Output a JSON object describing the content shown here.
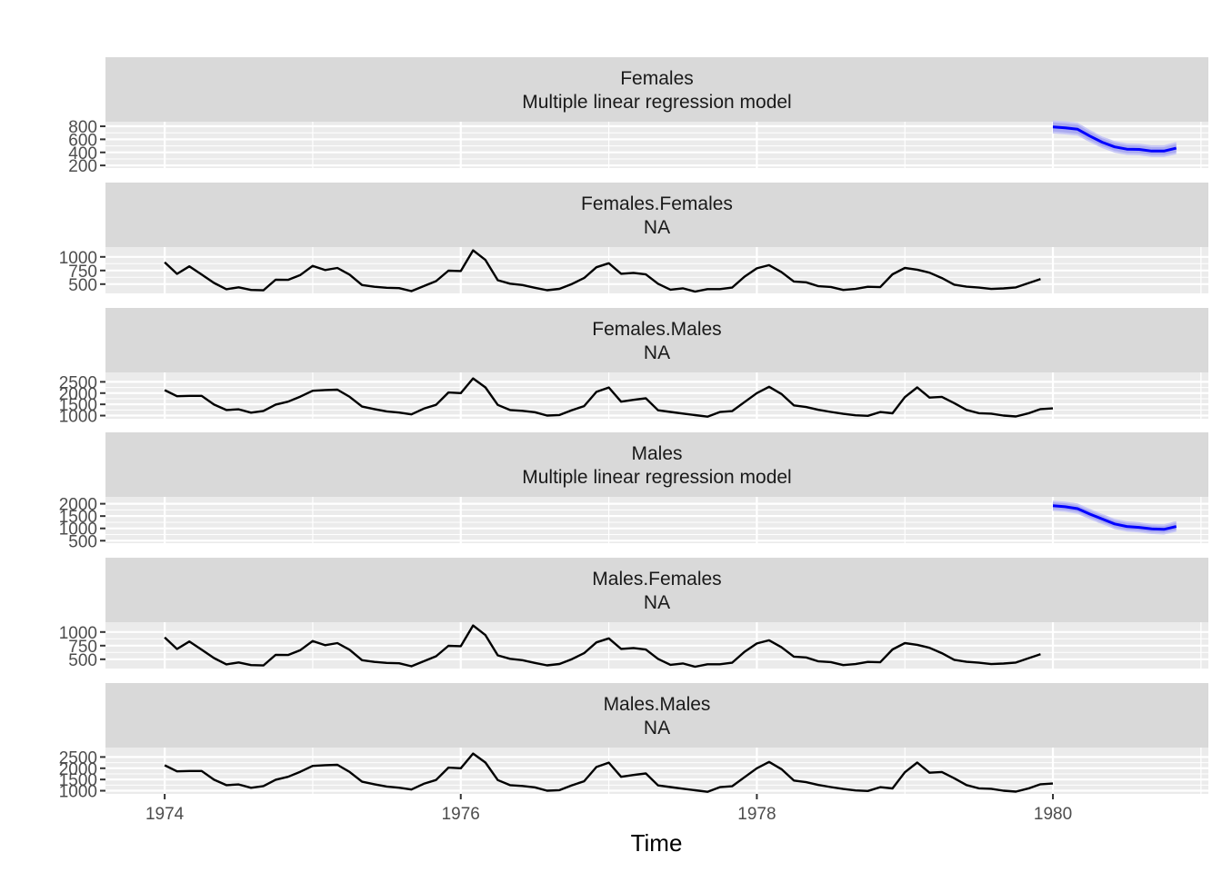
{
  "colors": {
    "strip_bg": "#d9d9d9",
    "panel_bg": "#ebebeb",
    "series": "#000000",
    "forecast": "#0000ff",
    "band80": "#aaaaf0",
    "band95": "#c8c8f5"
  },
  "chart_data": {
    "type": "line",
    "xlabel": "Time",
    "xlim": [
      1973.6,
      1981.05
    ],
    "x_ticks": [
      1974,
      1976,
      1978,
      1980
    ],
    "x_tick_labels": [
      "1974",
      "1976",
      "1978",
      "1980"
    ],
    "grid": true,
    "panels": [
      {
        "strip": [
          "Females",
          "Multiple linear regression model"
        ],
        "ylim": [
          160,
          870
        ],
        "y_ticks": [
          200,
          400,
          600,
          800
        ],
        "y_tick_labels": [
          "200",
          "400",
          "600",
          "800"
        ],
        "forecast": {
          "x_start": 1980.0,
          "step": 0.08333,
          "mean": [
            790,
            775,
            755,
            650,
            555,
            485,
            450,
            445,
            420,
            420,
            465
          ],
          "lo80": [
            720,
            705,
            685,
            585,
            495,
            425,
            390,
            385,
            360,
            360,
            400
          ],
          "hi80": [
            860,
            845,
            825,
            715,
            615,
            545,
            510,
            505,
            480,
            480,
            530
          ],
          "lo95": [
            690,
            675,
            655,
            555,
            465,
            395,
            360,
            355,
            330,
            330,
            370
          ],
          "hi95": [
            890,
            875,
            855,
            745,
            645,
            575,
            540,
            535,
            510,
            510,
            560
          ]
        }
      },
      {
        "strip": [
          "Females.Females",
          "NA"
        ],
        "ylim": [
          330,
          1180
        ],
        "y_ticks": [
          500,
          750,
          1000
        ],
        "y_tick_labels": [
          "500",
          "750",
          "1000"
        ],
        "series": {
          "x_start": 1974.0,
          "step": 0.08333,
          "values": [
            901,
            689,
            827,
            677,
            522,
            406,
            441,
            393,
            387,
            582,
            578,
            668,
            835,
            759,
            797,
            673,
            484,
            452,
            434,
            426,
            371,
            463,
            555,
            747,
            740,
            1120,
            944,
            571,
            509,
            484,
            433,
            388,
            414,
            502,
            612,
            810,
            883,
            690,
            706,
            678,
            506,
            399,
            424,
            364,
            408,
            409,
            437,
            636,
            790,
            848,
            720,
            548,
            533,
            461,
            449,
            393,
            412,
            451,
            445,
            680,
            797,
            765,
            710,
            612,
            490,
            453,
            436,
            412,
            422,
            440,
            519,
            594
          ]
        }
      },
      {
        "strip": [
          "Females.Males",
          "NA"
        ],
        "ylim": [
          860,
          2920
        ],
        "y_ticks": [
          1000,
          1500,
          2000,
          2500
        ],
        "y_tick_labels": [
          "1000",
          "1500",
          "2000",
          "2500"
        ],
        "series": {
          "x_start": 1974.0,
          "step": 0.08333,
          "values": [
            2134,
            1863,
            1877,
            1877,
            1492,
            1249,
            1280,
            1131,
            1209,
            1492,
            1621,
            1846,
            2103,
            2137,
            2153,
            1833,
            1403,
            1288,
            1186,
            1133,
            1055,
            1310,
            1480,
            2028,
            1999,
            2652,
            2255,
            1473,
            1247,
            1213,
            1150,
            1003,
            1025,
            1240,
            1420,
            2056,
            2250,
            1620,
            1700,
            1770,
            1235,
            1162,
            1090,
            1020,
            953,
            1160,
            1200,
            1598,
            2000,
            2283,
            1958,
            1455,
            1382,
            1254,
            1161,
            1080,
            1013,
            991,
            1157,
            1103,
            1820,
            2255,
            1800,
            1832,
            1556,
            1250,
            1105,
            1085,
            1000,
            960,
            1100,
            1290,
            1320
          ]
        }
      },
      {
        "strip": [
          "Males",
          "Multiple linear regression model"
        ],
        "ylim": [
          400,
          2280
        ],
        "y_ticks": [
          500,
          1000,
          1500,
          2000
        ],
        "y_tick_labels": [
          "500",
          "1000",
          "1500",
          "2000"
        ],
        "forecast": {
          "x_start": 1980.0,
          "step": 0.08333,
          "mean": [
            1920,
            1880,
            1800,
            1580,
            1380,
            1180,
            1080,
            1040,
            980,
            960,
            1080
          ],
          "lo80": [
            1780,
            1740,
            1660,
            1440,
            1240,
            1040,
            940,
            900,
            840,
            820,
            930
          ],
          "hi80": [
            2060,
            2020,
            1940,
            1720,
            1520,
            1320,
            1220,
            1180,
            1120,
            1100,
            1230
          ],
          "lo95": [
            1710,
            1670,
            1590,
            1370,
            1170,
            970,
            870,
            830,
            770,
            750,
            860
          ],
          "hi95": [
            2130,
            2090,
            2010,
            1790,
            1590,
            1390,
            1290,
            1250,
            1190,
            1170,
            1300
          ]
        }
      },
      {
        "strip": [
          "Males.Females",
          "NA"
        ],
        "ylim": [
          330,
          1180
        ],
        "y_ticks": [
          500,
          750,
          1000
        ],
        "y_tick_labels": [
          "500",
          "750",
          "1000"
        ],
        "series": {
          "x_start": 1974.0,
          "step": 0.08333,
          "values": [
            901,
            689,
            827,
            677,
            522,
            406,
            441,
            393,
            387,
            582,
            578,
            668,
            835,
            759,
            797,
            673,
            484,
            452,
            434,
            426,
            371,
            463,
            555,
            747,
            740,
            1120,
            944,
            571,
            509,
            484,
            433,
            388,
            414,
            502,
            612,
            810,
            883,
            690,
            706,
            678,
            506,
            399,
            424,
            364,
            408,
            409,
            437,
            636,
            790,
            848,
            720,
            548,
            533,
            461,
            449,
            393,
            412,
            451,
            445,
            680,
            797,
            765,
            710,
            612,
            490,
            453,
            436,
            412,
            422,
            440,
            519,
            594
          ]
        }
      },
      {
        "strip": [
          "Males.Males",
          "NA"
        ],
        "ylim": [
          860,
          2920
        ],
        "y_ticks": [
          1000,
          1500,
          2000,
          2500
        ],
        "y_tick_labels": [
          "1000",
          "1500",
          "2000",
          "2500"
        ],
        "series": {
          "x_start": 1974.0,
          "step": 0.08333,
          "values": [
            2134,
            1863,
            1877,
            1877,
            1492,
            1249,
            1280,
            1131,
            1209,
            1492,
            1621,
            1846,
            2103,
            2137,
            2153,
            1833,
            1403,
            1288,
            1186,
            1133,
            1055,
            1310,
            1480,
            2028,
            1999,
            2652,
            2255,
            1473,
            1247,
            1213,
            1150,
            1003,
            1025,
            1240,
            1420,
            2056,
            2250,
            1620,
            1700,
            1770,
            1235,
            1162,
            1090,
            1020,
            953,
            1160,
            1200,
            1598,
            2000,
            2283,
            1958,
            1455,
            1382,
            1254,
            1161,
            1080,
            1013,
            991,
            1157,
            1103,
            1820,
            2255,
            1800,
            1832,
            1556,
            1250,
            1105,
            1085,
            1000,
            960,
            1100,
            1290,
            1320
          ]
        }
      }
    ]
  }
}
